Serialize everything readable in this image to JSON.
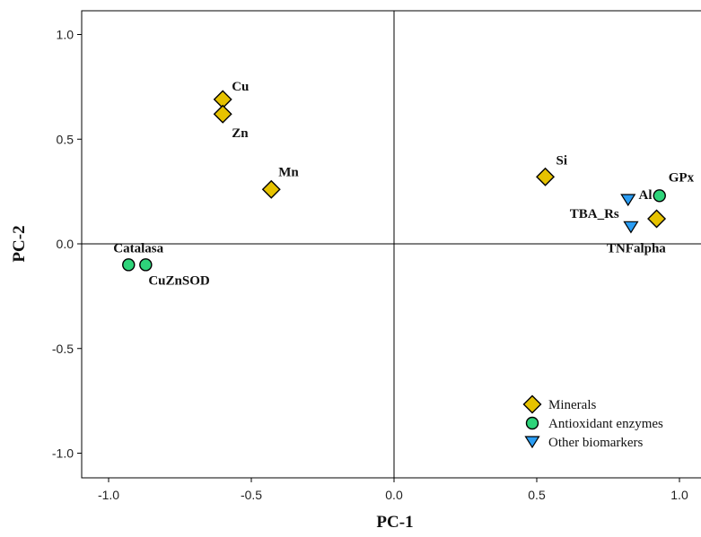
{
  "chart_data": {
    "type": "scatter",
    "xlabel": "PC-1",
    "ylabel": "PC-2",
    "xlim": [
      -1.1,
      1.1
    ],
    "ylim": [
      -1.1,
      1.1
    ],
    "xticks": [
      "-1.0",
      "-0.5",
      "0.0",
      "0.5",
      "1.0"
    ],
    "yticks": [
      "1.0",
      "0.5",
      "0.0",
      "-0.5",
      "-1.0"
    ],
    "grid": false,
    "reference_lines": {
      "x": 0,
      "y": 0
    },
    "legend_position": "bottom-right",
    "series": [
      {
        "name": "Minerals",
        "marker": "diamond",
        "color": "#e6c200",
        "points": [
          {
            "label": "Cu",
            "x": -0.6,
            "y": 0.69
          },
          {
            "label": "Zn",
            "x": -0.6,
            "y": 0.62
          },
          {
            "label": "Mn",
            "x": -0.43,
            "y": 0.26
          },
          {
            "label": "Si",
            "x": 0.53,
            "y": 0.32
          },
          {
            "label": "Al",
            "x": 0.92,
            "y": 0.12
          }
        ]
      },
      {
        "name": "Antioxidant enzymes",
        "marker": "circle",
        "color": "#2ed47a",
        "points": [
          {
            "label": "Catalasa",
            "x": -0.93,
            "y": -0.1
          },
          {
            "label": "CuZnSOD",
            "x": -0.87,
            "y": -0.1
          },
          {
            "label": "GPx",
            "x": 0.93,
            "y": 0.23
          }
        ]
      },
      {
        "name": "Other biomarkers",
        "marker": "triangle-down",
        "color": "#2a9df4",
        "points": [
          {
            "label": "TBA_Rs",
            "x": 0.82,
            "y": 0.21
          },
          {
            "label": "TNFalpha",
            "x": 0.83,
            "y": 0.08
          }
        ]
      }
    ]
  }
}
